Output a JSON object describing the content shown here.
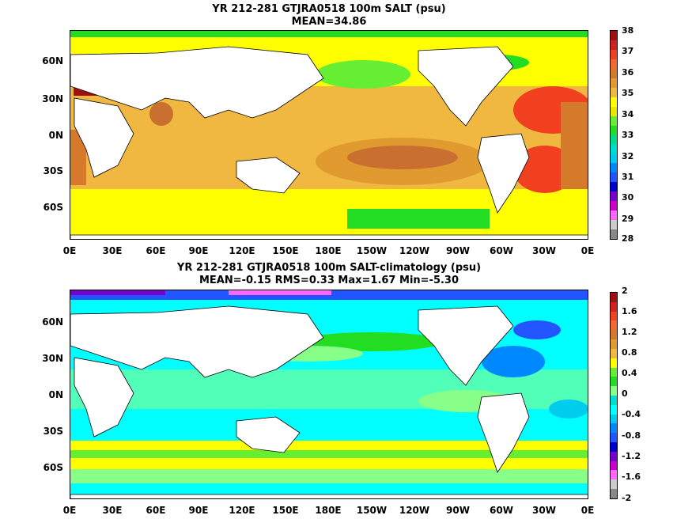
{
  "top": {
    "title_line1": "YR 212-281 GTJRA0518 100m SALT (psu)",
    "title_line2": "MEAN=34.86",
    "colorbar": {
      "labels": [
        "38",
        "37",
        "36",
        "35",
        "34",
        "33",
        "32",
        "31",
        "30",
        "29",
        "28"
      ],
      "colors": [
        "#a01010",
        "#d02020",
        "#f04020",
        "#f06a30",
        "#d47a2a",
        "#e09a30",
        "#f0b840",
        "#ffff00",
        "#e8e800",
        "#66ee33",
        "#22dd22",
        "#00dd88",
        "#00ddcc",
        "#00ccee",
        "#0088ff",
        "#2255ff",
        "#0000cc",
        "#7700cc",
        "#cc00cc",
        "#ff66ff",
        "#cccccc",
        "#888888"
      ]
    }
  },
  "bottom": {
    "title_line1": "YR 212-281 GTJRA0518 100m SALT-climatology (psu)",
    "title_line2": "MEAN=-0.15   RMS=0.33   Max=1.67   Min=-5.30",
    "colorbar": {
      "labels": [
        "2",
        "1.6",
        "1.2",
        "0.8",
        "0.4",
        "0",
        "-0.4",
        "-0.8",
        "-1.2",
        "-1.6",
        "-2"
      ],
      "colors": [
        "#a01010",
        "#d02020",
        "#f04020",
        "#f06a30",
        "#d47a2a",
        "#e09a30",
        "#f0b840",
        "#ffff00",
        "#66ee33",
        "#22dd22",
        "#88ff88",
        "#00ddcc",
        "#00ffff",
        "#00ccee",
        "#0088ff",
        "#2255ff",
        "#0000cc",
        "#7700cc",
        "#cc00cc",
        "#ff66ff",
        "#cccccc",
        "#888888"
      ]
    }
  },
  "axes": {
    "lat_labels": [
      "60N",
      "30N",
      "0N",
      "30S",
      "60S"
    ],
    "lon_labels": [
      "0E",
      "30E",
      "60E",
      "90E",
      "120E",
      "150E",
      "180E",
      "150W",
      "120W",
      "90W",
      "60W",
      "30W",
      "0E"
    ]
  }
}
